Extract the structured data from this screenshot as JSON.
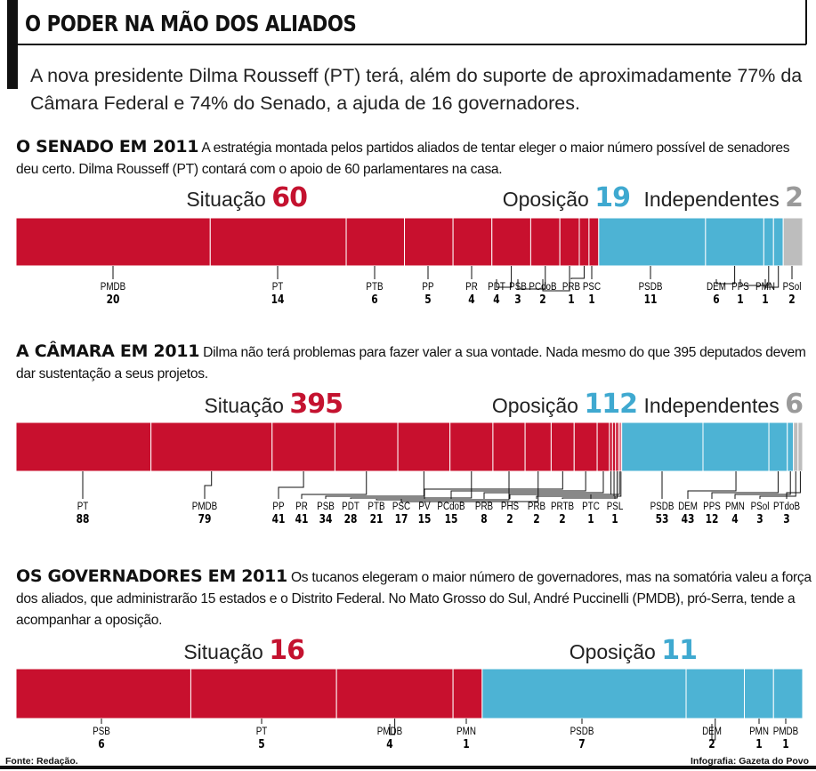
{
  "title": "O PODER NA MÃO DOS ALIADOS",
  "lede": "A nova presidente Dilma Rousseff (PT) terá, além do suporte de aproximadamente 77% da Câmara Federal e 74% do Senado, a ajuda de 16 governadores.",
  "colors": {
    "situacao": "#c8102e",
    "oposicao": "#4db3d4",
    "independentes": "#bdbdbd",
    "situacao_text": "#c4122f",
    "oposicao_text": "#3fa9d0",
    "independentes_text": "#9a9a9a"
  },
  "footer": {
    "source": "Fonte: Redação.",
    "credit": "Infografia: Gazeta do Povo"
  },
  "chart_data": [
    {
      "type": "bar",
      "stacked": true,
      "orientation": "horizontal",
      "heading": "O SENADO EM 2011",
      "text": "A estratégia montada pelos partidos aliados de tentar eleger o maior número possível de senadores deu certo. Dilma Rousseff (PT) contará com o apoio de 60 parlamentares na casa.",
      "groups": [
        {
          "name": "Situação",
          "total": "60",
          "key": "situacao"
        },
        {
          "name": "Oposição",
          "total": "19",
          "key": "oposicao"
        },
        {
          "name": "Independentes",
          "total": "2",
          "key": "independentes"
        }
      ],
      "series": [
        {
          "party": "PMDB",
          "value": 20,
          "group": "situacao"
        },
        {
          "party": "PT",
          "value": 14,
          "group": "situacao"
        },
        {
          "party": "PTB",
          "value": 6,
          "group": "situacao"
        },
        {
          "party": "PP",
          "value": 5,
          "group": "situacao"
        },
        {
          "party": "PR",
          "value": 4,
          "group": "situacao"
        },
        {
          "party": "PDT",
          "value": 4,
          "group": "situacao"
        },
        {
          "party": "PSB",
          "value": 3,
          "group": "situacao"
        },
        {
          "party": "PCdoB",
          "value": 2,
          "group": "situacao"
        },
        {
          "party": "PRB",
          "value": 1,
          "group": "situacao"
        },
        {
          "party": "PSC",
          "value": 1,
          "group": "situacao"
        },
        {
          "party": "PSDB",
          "value": 11,
          "group": "oposicao"
        },
        {
          "party": "DEM",
          "value": 6,
          "group": "oposicao"
        },
        {
          "party": "PPS",
          "value": 1,
          "group": "oposicao"
        },
        {
          "party": "PMN",
          "value": 1,
          "group": "oposicao"
        },
        {
          "party": "PSol",
          "value": 2,
          "group": "independentes"
        }
      ]
    },
    {
      "type": "bar",
      "stacked": true,
      "orientation": "horizontal",
      "heading": "A CÂMARA EM 2011",
      "text": "Dilma não terá problemas para fazer valer a sua vontade. Nada mesmo do que 395 deputados devem dar sustentação a seus projetos.",
      "groups": [
        {
          "name": "Situação",
          "total": "395",
          "key": "situacao"
        },
        {
          "name": "Oposição",
          "total": "112",
          "key": "oposicao"
        },
        {
          "name": "Independentes",
          "total": "6",
          "key": "independentes"
        }
      ],
      "series": [
        {
          "party": "PT",
          "value": 88,
          "group": "situacao"
        },
        {
          "party": "PMDB",
          "value": 79,
          "group": "situacao"
        },
        {
          "party": "PP",
          "value": 41,
          "group": "situacao"
        },
        {
          "party": "PR",
          "value": 41,
          "group": "situacao"
        },
        {
          "party": "PSB",
          "value": 34,
          "group": "situacao"
        },
        {
          "party": "PDT",
          "value": 28,
          "group": "situacao"
        },
        {
          "party": "PTB",
          "value": 21,
          "group": "situacao"
        },
        {
          "party": "PSC",
          "value": 17,
          "group": "situacao"
        },
        {
          "party": "PV",
          "value": 15,
          "group": "situacao"
        },
        {
          "party": "PCdoB",
          "value": 15,
          "group": "situacao"
        },
        {
          "party": "PRB",
          "value": 8,
          "group": "situacao"
        },
        {
          "party": "PHS",
          "value": 2,
          "group": "situacao"
        },
        {
          "party": "PRB",
          "value": 2,
          "group": "situacao"
        },
        {
          "party": "PRTB",
          "value": 2,
          "group": "situacao"
        },
        {
          "party": "PTC",
          "value": 1,
          "group": "situacao"
        },
        {
          "party": "PSL",
          "value": 1,
          "group": "situacao"
        },
        {
          "party": "PSDB",
          "value": 53,
          "group": "oposicao"
        },
        {
          "party": "DEM",
          "value": 43,
          "group": "oposicao"
        },
        {
          "party": "PPS",
          "value": 12,
          "group": "oposicao"
        },
        {
          "party": "PMN",
          "value": 4,
          "group": "oposicao"
        },
        {
          "party": "PSol",
          "value": 3,
          "group": "independentes"
        },
        {
          "party": "PTdoB",
          "value": 3,
          "group": "independentes"
        }
      ]
    },
    {
      "type": "bar",
      "stacked": true,
      "orientation": "horizontal",
      "heading": "OS GOVERNADORES EM 2011",
      "text": "Os tucanos elegeram o maior número de governadores, mas na somatória valeu a força dos aliados, que administrarão 15 estados e o Distrito Federal. No Mato Grosso do Sul, André Puccinelli (PMDB), pró-Serra, tende a acompanhar a oposição.",
      "groups": [
        {
          "name": "Situação",
          "total": "16",
          "key": "situacao"
        },
        {
          "name": "Oposição",
          "total": "11",
          "key": "oposicao"
        }
      ],
      "series": [
        {
          "party": "PSB",
          "value": 6,
          "group": "situacao"
        },
        {
          "party": "PT",
          "value": 5,
          "group": "situacao"
        },
        {
          "party": "PMDB",
          "value": 4,
          "group": "situacao"
        },
        {
          "party": "PMN",
          "value": 1,
          "group": "situacao"
        },
        {
          "party": "PSDB",
          "value": 7,
          "group": "oposicao"
        },
        {
          "party": "DEM",
          "value": 2,
          "group": "oposicao"
        },
        {
          "party": "PMN",
          "value": 1,
          "group": "oposicao"
        },
        {
          "party": "PMDB",
          "value": 1,
          "group": "oposicao"
        }
      ]
    }
  ]
}
